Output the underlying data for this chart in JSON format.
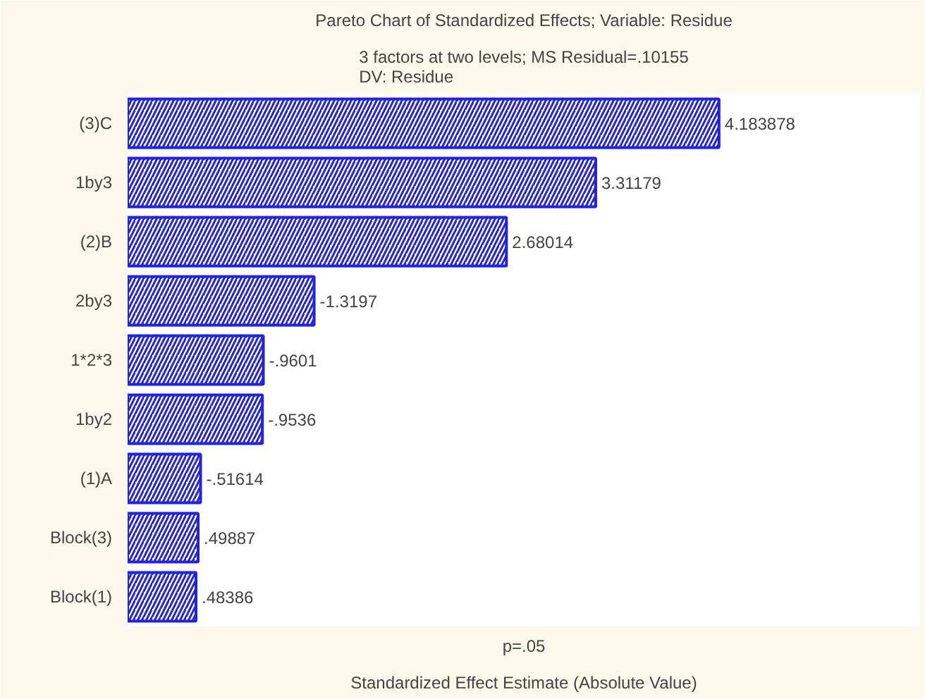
{
  "chart_data": {
    "type": "bar",
    "orientation": "horizontal",
    "title": "Pareto Chart of Standardized Effects; Variable: Residue",
    "subtitle": "3 factors at two levels; MS Residual=.10155\nDV: Residue",
    "xlabel": "Standardized Effect Estimate (Absolute Value)",
    "annotations": [
      "p=.05",
      {
        "text": "-1.3197",
        "x": 1.3197,
        "y": "2by3"
      },
      {
        "text": "-.9601",
        "x": 0.9601,
        "y": "1*2*3"
      },
      {
        "text": "-.9536",
        "x": 0.9536,
        "y": "1by2"
      },
      {
        "text": "-.51614",
        "x": 0.51614,
        "y": "(1)A"
      }
    ],
    "categories": [
      "(3)C",
      "1by3",
      "(2)B",
      "2by3",
      "1*2*3",
      "1by2",
      "(1)A",
      "Block(3)",
      "Block(1)"
    ],
    "values": [
      4.183878,
      3.31179,
      2.68014,
      1.3197,
      0.9601,
      0.9536,
      0.51614,
      0.49887,
      0.48386
    ],
    "value_labels": [
      "4.183878",
      "3.31179",
      "2.68014",
      null,
      null,
      null,
      null,
      ".49887",
      ".48386"
    ],
    "color": "#2020f0",
    "grid": false
  }
}
